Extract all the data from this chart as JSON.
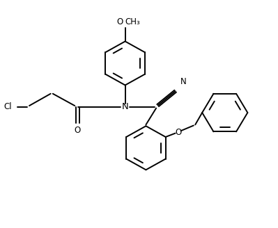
{
  "bg_color": "#ffffff",
  "line_color": "#000000",
  "line_width": 1.4,
  "font_size": 8.5,
  "fig_width": 3.99,
  "fig_height": 3.28,
  "dpi": 100,
  "xlim": [
    0,
    10
  ],
  "ylim": [
    0,
    8.5
  ]
}
